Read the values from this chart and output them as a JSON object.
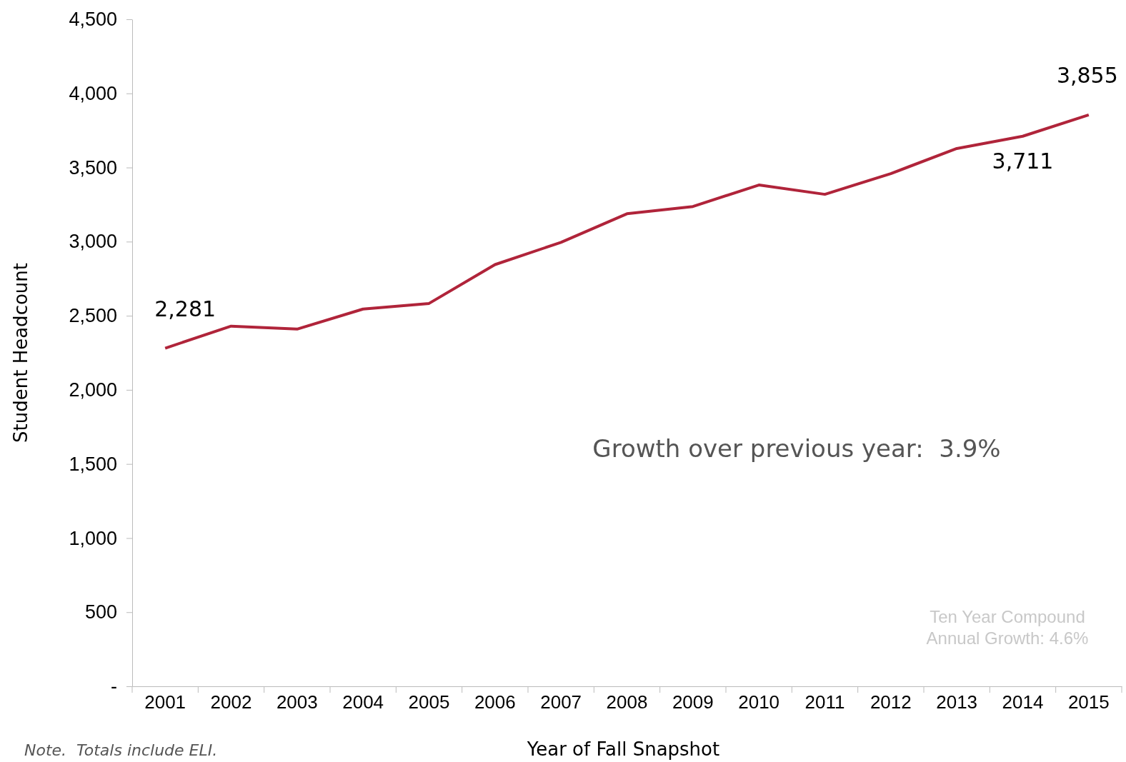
{
  "chart_data": {
    "type": "line",
    "xlabel": "Year of Fall Snapshot",
    "ylabel": "Student Headcount",
    "categories": [
      "2001",
      "2002",
      "2003",
      "2004",
      "2005",
      "2006",
      "2007",
      "2008",
      "2009",
      "2010",
      "2011",
      "2012",
      "2013",
      "2014",
      "2015"
    ],
    "series": [
      {
        "color": "#b0243a",
        "values": [
          2281,
          2430,
          2410,
          2545,
          2583,
          2845,
          2995,
          3188,
          3237,
          3382,
          3319,
          3459,
          3628,
          3711,
          3855
        ],
        "value_labels": [
          "2,281",
          null,
          null,
          null,
          null,
          null,
          null,
          null,
          null,
          null,
          null,
          null,
          null,
          "3,711",
          "3,855"
        ]
      }
    ],
    "ylim": [
      0,
      4500
    ],
    "yticks": [
      {
        "value": 0,
        "label": "-"
      },
      {
        "value": 500,
        "label": "500"
      },
      {
        "value": 1000,
        "label": "1,000"
      },
      {
        "value": 1500,
        "label": "1,500"
      },
      {
        "value": 2000,
        "label": "2,000"
      },
      {
        "value": 2500,
        "label": "2,500"
      },
      {
        "value": 3000,
        "label": "3,000"
      },
      {
        "value": 3500,
        "label": "3,500"
      },
      {
        "value": 4000,
        "label": "4,000"
      },
      {
        "value": 4500,
        "label": "4,500"
      }
    ],
    "grid": false,
    "marker": "none",
    "line_style": "solid",
    "annotations": [
      "Growth over previous year:  3.9%",
      "Ten Year Compound\nAnnual Growth: 4.6%",
      "Note.  Totals include ELI."
    ]
  }
}
